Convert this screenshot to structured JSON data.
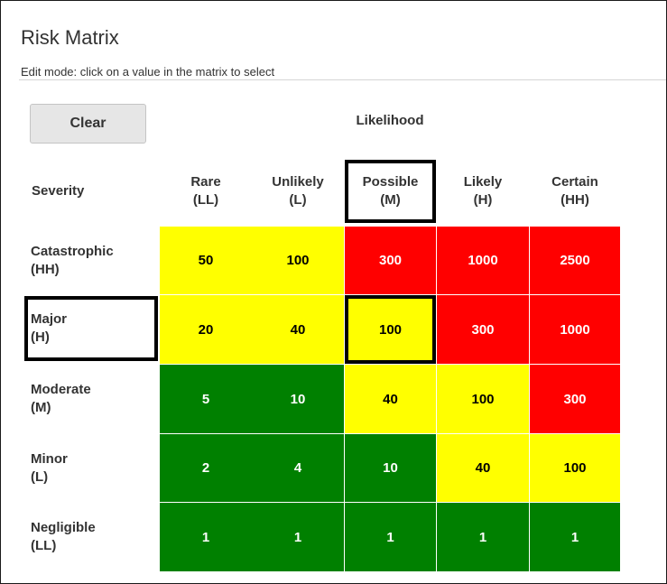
{
  "header": {
    "title": "Risk Matrix",
    "subtitle": "Edit mode: click on a value in the matrix to select"
  },
  "toolbar": {
    "clear_label": "Clear"
  },
  "matrix": {
    "likelihood_label": "Likelihood",
    "severity_label": "Severity",
    "columns": [
      {
        "name": "Rare",
        "code": "(LL)"
      },
      {
        "name": "Unlikely",
        "code": "(L)"
      },
      {
        "name": "Possible",
        "code": "(M)"
      },
      {
        "name": "Likely",
        "code": "(H)"
      },
      {
        "name": "Certain",
        "code": "(HH)"
      }
    ],
    "rows": [
      {
        "name": "Catastrophic",
        "code": "(HH)",
        "cells": [
          {
            "value": "50",
            "level": "yellow"
          },
          {
            "value": "100",
            "level": "yellow"
          },
          {
            "value": "300",
            "level": "red"
          },
          {
            "value": "1000",
            "level": "red"
          },
          {
            "value": "2500",
            "level": "red"
          }
        ]
      },
      {
        "name": "Major",
        "code": "(H)",
        "cells": [
          {
            "value": "20",
            "level": "yellow"
          },
          {
            "value": "40",
            "level": "yellow"
          },
          {
            "value": "100",
            "level": "yellow"
          },
          {
            "value": "300",
            "level": "red"
          },
          {
            "value": "1000",
            "level": "red"
          }
        ]
      },
      {
        "name": "Moderate",
        "code": "(M)",
        "cells": [
          {
            "value": "5",
            "level": "green"
          },
          {
            "value": "10",
            "level": "green"
          },
          {
            "value": "40",
            "level": "yellow"
          },
          {
            "value": "100",
            "level": "yellow"
          },
          {
            "value": "300",
            "level": "red"
          }
        ]
      },
      {
        "name": "Minor",
        "code": "(L)",
        "cells": [
          {
            "value": "2",
            "level": "green"
          },
          {
            "value": "4",
            "level": "green"
          },
          {
            "value": "10",
            "level": "green"
          },
          {
            "value": "40",
            "level": "yellow"
          },
          {
            "value": "100",
            "level": "yellow"
          }
        ]
      },
      {
        "name": "Negligible",
        "code": "(LL)",
        "cells": [
          {
            "value": "1",
            "level": "green"
          },
          {
            "value": "1",
            "level": "green"
          },
          {
            "value": "1",
            "level": "green"
          },
          {
            "value": "1",
            "level": "green"
          },
          {
            "value": "1",
            "level": "green"
          }
        ]
      }
    ],
    "selected": {
      "row": 1,
      "col": 2
    }
  },
  "colors": {
    "yellow": "#ffff00",
    "red": "#ff0000",
    "green": "#008000"
  }
}
